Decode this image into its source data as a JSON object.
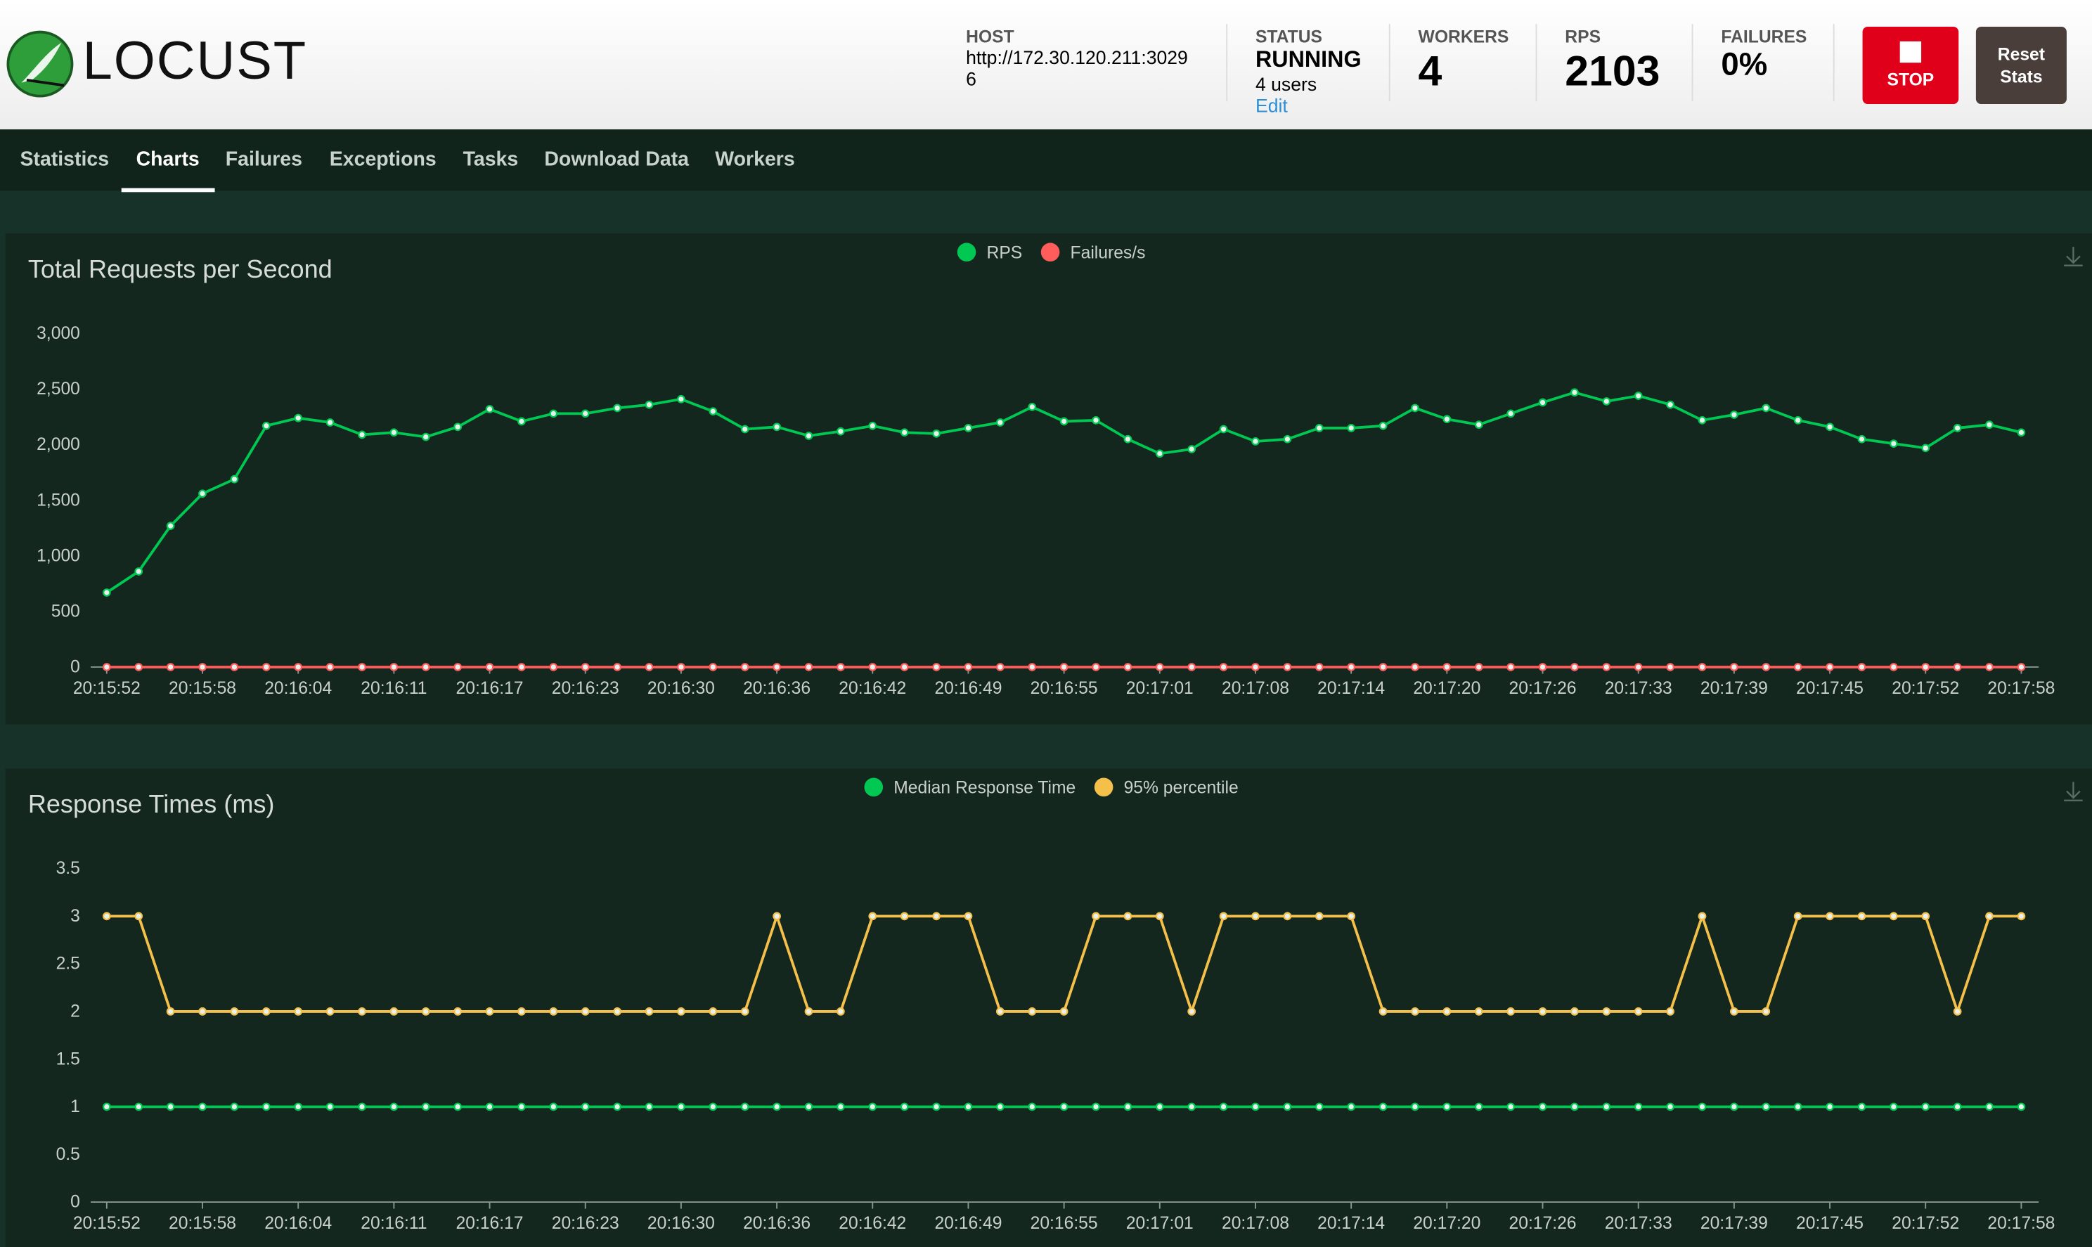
{
  "header": {
    "brand": "LOCUST",
    "stats": [
      {
        "label": "HOST",
        "value": "http://172.30.120.211:30296"
      },
      {
        "label": "STATUS",
        "value": "RUNNING",
        "sub": "4 users",
        "link": "Edit"
      },
      {
        "label": "WORKERS",
        "value": "4"
      },
      {
        "label": "RPS",
        "value": "2103"
      },
      {
        "label": "FAILURES",
        "value": "0%"
      }
    ],
    "buttons": [
      "STOP",
      "Reset Stats"
    ]
  },
  "tabs": {
    "items": [
      "Statistics",
      "Charts",
      "Failures",
      "Exceptions",
      "Tasks",
      "Download Data",
      "Workers"
    ],
    "active": "Charts"
  },
  "chart_data": [
    {
      "type": "line",
      "title": "Total Requests per Second",
      "categories": [
        "20:15:52",
        null,
        null,
        "20:15:58",
        null,
        null,
        "20:16:04",
        null,
        null,
        "20:16:11",
        null,
        null,
        "20:16:17",
        null,
        null,
        "20:16:23",
        null,
        null,
        "20:16:30",
        null,
        null,
        "20:16:36",
        null,
        null,
        "20:16:42",
        null,
        null,
        "20:16:49",
        null,
        null,
        "20:16:55",
        null,
        null,
        "20:17:01",
        null,
        null,
        "20:17:08",
        null,
        null,
        "20:17:14",
        null,
        null,
        "20:17:20",
        null,
        null,
        "20:17:26",
        null,
        null,
        "20:17:33",
        null,
        null,
        "20:17:39",
        null,
        null,
        "20:17:45",
        null,
        null,
        "20:17:52",
        null,
        null,
        "20:17:58"
      ],
      "series": [
        {
          "name": "RPS",
          "color": "#00c853",
          "values": [
            670,
            860,
            1270,
            1560,
            1690,
            2170,
            2240,
            2200,
            2090,
            2110,
            2070,
            2160,
            2320,
            2210,
            2280,
            2280,
            2330,
            2360,
            2410,
            2300,
            2140,
            2160,
            2080,
            2120,
            2170,
            2110,
            2100,
            2150,
            2200,
            2340,
            2210,
            2220,
            2050,
            1920,
            1960,
            2140,
            2030,
            2050,
            2150,
            2150,
            2170,
            2330,
            2230,
            2180,
            2280,
            2380,
            2470,
            2390,
            2440,
            2360,
            2220,
            2270,
            2330,
            2220,
            2160,
            2050,
            2010,
            1970,
            2150,
            2180,
            2110
          ]
        },
        {
          "name": "Failures/s",
          "color": "#ff5c5c",
          "values": [
            0,
            0,
            0,
            0,
            0,
            0,
            0,
            0,
            0,
            0,
            0,
            0,
            0,
            0,
            0,
            0,
            0,
            0,
            0,
            0,
            0,
            0,
            0,
            0,
            0,
            0,
            0,
            0,
            0,
            0,
            0,
            0,
            0,
            0,
            0,
            0,
            0,
            0,
            0,
            0,
            0,
            0,
            0,
            0,
            0,
            0,
            0,
            0,
            0,
            0,
            0,
            0,
            0,
            0,
            0,
            0,
            0,
            0,
            0,
            0,
            0
          ]
        }
      ],
      "ylim": [
        0,
        3000
      ],
      "yticks": [
        0,
        500,
        {
          "value": 1000,
          "label": "1,000"
        },
        {
          "value": 1500,
          "label": "1,500"
        },
        {
          "value": 2000,
          "label": "2,000"
        },
        {
          "value": 2500,
          "label": "2,500"
        },
        {
          "value": 3000,
          "label": "3,000"
        }
      ],
      "grid": false,
      "legend": "top"
    },
    {
      "type": "line",
      "title": "Response Times (ms)",
      "categories": [
        "20:15:52",
        null,
        null,
        "20:15:58",
        null,
        null,
        "20:16:04",
        null,
        null,
        "20:16:11",
        null,
        null,
        "20:16:17",
        null,
        null,
        "20:16:23",
        null,
        null,
        "20:16:30",
        null,
        null,
        "20:16:36",
        null,
        null,
        "20:16:42",
        null,
        null,
        "20:16:49",
        null,
        null,
        "20:16:55",
        null,
        null,
        "20:17:01",
        null,
        null,
        "20:17:08",
        null,
        null,
        "20:17:14",
        null,
        null,
        "20:17:20",
        null,
        null,
        "20:17:26",
        null,
        null,
        "20:17:33",
        null,
        null,
        "20:17:39",
        null,
        null,
        "20:17:45",
        null,
        null,
        "20:17:52",
        null,
        null,
        "20:17:58"
      ],
      "series": [
        {
          "name": "Median Response Time",
          "color": "#00c853",
          "values": [
            1,
            1,
            1,
            1,
            1,
            1,
            1,
            1,
            1,
            1,
            1,
            1,
            1,
            1,
            1,
            1,
            1,
            1,
            1,
            1,
            1,
            1,
            1,
            1,
            1,
            1,
            1,
            1,
            1,
            1,
            1,
            1,
            1,
            1,
            1,
            1,
            1,
            1,
            1,
            1,
            1,
            1,
            1,
            1,
            1,
            1,
            1,
            1,
            1,
            1,
            1,
            1,
            1,
            1,
            1,
            1,
            1,
            1,
            1,
            1,
            1
          ]
        },
        {
          "name": "95% percentile",
          "color": "#f5c04a",
          "values": [
            3,
            3,
            2,
            2,
            2,
            2,
            2,
            2,
            2,
            2,
            2,
            2,
            2,
            2,
            2,
            2,
            2,
            2,
            2,
            2,
            2,
            3,
            2,
            2,
            3,
            3,
            3,
            3,
            2,
            2,
            2,
            3,
            3,
            3,
            2,
            3,
            3,
            3,
            3,
            3,
            2,
            2,
            2,
            2,
            2,
            2,
            2,
            2,
            2,
            2,
            3,
            2,
            2,
            3,
            3,
            3,
            3,
            3,
            2,
            3,
            3
          ]
        }
      ],
      "ylim": [
        0,
        3.5
      ],
      "yticks": [
        0,
        0.5,
        1,
        1.5,
        2,
        2.5,
        3,
        3.5
      ],
      "grid": false,
      "legend": "top"
    }
  ]
}
